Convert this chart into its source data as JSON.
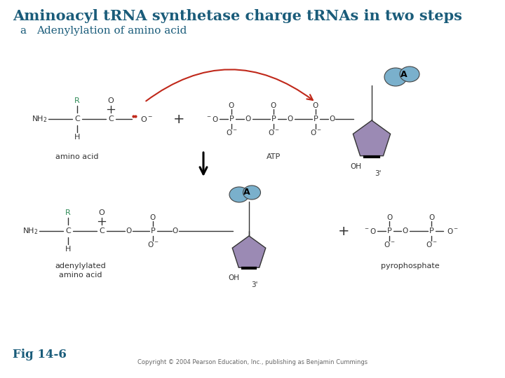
{
  "title": "Aminoacyl tRNA synthetase charge tRNAs in two steps",
  "title_color": "#1a5c7a",
  "title_fontsize": 15,
  "subtitle_a": "a",
  "subtitle_text": "Adenylylation of amino acid",
  "subtitle_color": "#1a5c7a",
  "subtitle_fontsize": 11,
  "fig_label": "Fig 14-6",
  "fig_label_color": "#1a5c7a",
  "copyright": "Copyright © 2004 Pearson Education, Inc., publishing as Benjamin Cummings",
  "background_color": "#ffffff",
  "purple_shape": "#9b8ab4",
  "blue_shape": "#7ab0cc",
  "red_arrow": "#c0281a",
  "green_label": "#2e8b57"
}
